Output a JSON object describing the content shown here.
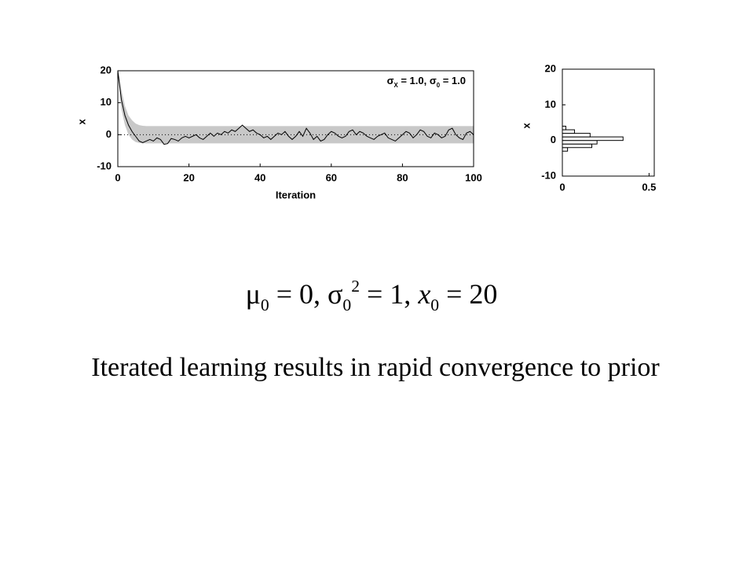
{
  "chart_data": [
    {
      "type": "line",
      "xlabel": "Iteration",
      "ylabel": "x",
      "annotation": [
        {
          "text": "σ"
        },
        {
          "text": "X",
          "style": "sub"
        },
        {
          "text": " = 1.0, "
        },
        {
          "text": "σ"
        },
        {
          "text": "0",
          "style": "sub"
        },
        {
          "text": " = 1.0"
        }
      ],
      "xlim": [
        0,
        100
      ],
      "xticks": [
        0,
        20,
        40,
        60,
        80,
        100
      ],
      "ylim": [
        -10,
        20
      ],
      "yticks": [
        -10,
        0,
        10,
        20
      ],
      "hline": 0,
      "band": {
        "color": "#c8c8c8",
        "x": [
          0,
          1,
          2,
          3,
          4,
          5,
          6,
          7,
          8,
          10,
          100
        ],
        "upper": [
          20.5,
          14,
          9,
          6,
          4.5,
          3.5,
          3,
          2.8,
          2.7,
          2.7,
          2.7
        ],
        "lower": [
          19.5,
          8,
          3,
          0,
          -1.5,
          -2.3,
          -2.6,
          -2.7,
          -2.7,
          -2.7,
          -2.7
        ]
      },
      "x": [
        0,
        1,
        2,
        3,
        4,
        5,
        6,
        7,
        8,
        9,
        10,
        11,
        12,
        13,
        14,
        15,
        16,
        17,
        18,
        19,
        20,
        21,
        22,
        23,
        24,
        25,
        26,
        27,
        28,
        29,
        30,
        31,
        32,
        33,
        34,
        35,
        36,
        37,
        38,
        39,
        40,
        41,
        42,
        43,
        44,
        45,
        46,
        47,
        48,
        49,
        50,
        51,
        52,
        53,
        54,
        55,
        56,
        57,
        58,
        59,
        60,
        61,
        62,
        63,
        64,
        65,
        66,
        67,
        68,
        69,
        70,
        71,
        72,
        73,
        74,
        75,
        76,
        77,
        78,
        79,
        80,
        81,
        82,
        83,
        84,
        85,
        86,
        87,
        88,
        89,
        90,
        91,
        92,
        93,
        94,
        95,
        96,
        97,
        98,
        99,
        100
      ],
      "color": "#000000",
      "values": [
        20,
        11,
        6,
        3,
        1,
        -0.5,
        -2,
        -2.5,
        -2,
        -1.5,
        -2,
        -1,
        -1.5,
        -3,
        -2.8,
        -1.2,
        -1.5,
        -2,
        -1,
        -0.5,
        -1,
        -0.5,
        0,
        -1,
        -1.5,
        -0.5,
        0.5,
        -0.5,
        0.5,
        0,
        1,
        0.5,
        1.5,
        1,
        2,
        3,
        2,
        1,
        1.5,
        0.5,
        0,
        -1,
        -0.5,
        -1.5,
        -0.5,
        0.5,
        0,
        1,
        -0.5,
        -1.5,
        -0.5,
        1,
        -0.5,
        2,
        0.5,
        -1.5,
        -0.5,
        -2,
        -1.5,
        0,
        1,
        0.5,
        -0.5,
        -1,
        -0.5,
        1,
        1.5,
        0,
        1,
        0.5,
        -0.5,
        -1,
        -1.5,
        -0.5,
        0,
        0.5,
        -1,
        -1.5,
        -2,
        -1,
        0,
        1,
        0.5,
        -1,
        0,
        1.5,
        1,
        -0.5,
        -1,
        0.5,
        0,
        -1,
        -0.5,
        1.5,
        2,
        0,
        -1,
        -1.5,
        0.5,
        1,
        0
      ]
    },
    {
      "type": "histogram",
      "orientation": "horizontal",
      "ylabel": "x",
      "xlim": [
        0,
        0.53
      ],
      "xticks": [
        0,
        0.5
      ],
      "ylim": [
        -10,
        20
      ],
      "yticks": [
        -10,
        0,
        10,
        20
      ],
      "bins": [
        -3,
        -2,
        -1,
        0,
        1,
        2,
        3,
        4
      ],
      "values": [
        0.03,
        0.17,
        0.2,
        0.35,
        0.16,
        0.07,
        0.02
      ],
      "color": "#ffffff"
    }
  ],
  "formula": [
    {
      "text": "μ"
    },
    {
      "text": "0",
      "style": "sub"
    },
    {
      "text": " = 0, "
    },
    {
      "text": "σ"
    },
    {
      "text": "0",
      "style": "sub"
    },
    {
      "text": "2",
      "style": "sup"
    },
    {
      "text": " = 1, "
    },
    {
      "text": "x",
      "style": "italic"
    },
    {
      "text": "0",
      "style": "sub"
    },
    {
      "text": " = 20"
    }
  ],
  "caption": "Iterated learning results in rapid convergence to prior"
}
